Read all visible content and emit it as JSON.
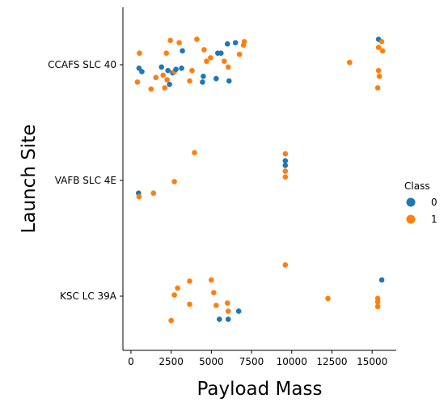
{
  "chart_data": {
    "type": "scatter",
    "xlabel": "Payload Mass",
    "ylabel": "Launch Site",
    "xlim": [
      -500,
      16500
    ],
    "xticks": [
      0,
      2500,
      5000,
      7500,
      10000,
      12500,
      15000
    ],
    "categories": [
      "CCAFS SLC 40",
      "VAFB SLC 4E",
      "KSC LC 39A"
    ],
    "legend": {
      "title": "Class",
      "position": "center-right",
      "entries": [
        {
          "label": "0",
          "color": "#1f77b4"
        },
        {
          "label": "1",
          "color": "#ff7f0e"
        }
      ]
    },
    "points": [
      {
        "site": "CCAFS SLC 40",
        "x": 400,
        "jitter": 0.15,
        "cls": 1
      },
      {
        "site": "CCAFS SLC 40",
        "x": 530,
        "jitter": -0.1,
        "cls": 1
      },
      {
        "site": "CCAFS SLC 40",
        "x": 500,
        "jitter": 0.03,
        "cls": 0
      },
      {
        "site": "CCAFS SLC 40",
        "x": 680,
        "jitter": 0.06,
        "cls": 0
      },
      {
        "site": "CCAFS SLC 40",
        "x": 1250,
        "jitter": 0.21,
        "cls": 1
      },
      {
        "site": "CCAFS SLC 40",
        "x": 1550,
        "jitter": 0.11,
        "cls": 1
      },
      {
        "site": "CCAFS SLC 40",
        "x": 1900,
        "jitter": 0.02,
        "cls": 0
      },
      {
        "site": "CCAFS SLC 40",
        "x": 2000,
        "jitter": 0.09,
        "cls": 1
      },
      {
        "site": "CCAFS SLC 40",
        "x": 2100,
        "jitter": 0.2,
        "cls": 1
      },
      {
        "site": "CCAFS SLC 40",
        "x": 2200,
        "jitter": -0.1,
        "cls": 1
      },
      {
        "site": "CCAFS SLC 40",
        "x": 2250,
        "jitter": 0.13,
        "cls": 1
      },
      {
        "site": "CCAFS SLC 40",
        "x": 2300,
        "jitter": 0.05,
        "cls": 0
      },
      {
        "site": "CCAFS SLC 40",
        "x": 2400,
        "jitter": 0.17,
        "cls": 0
      },
      {
        "site": "CCAFS SLC 40",
        "x": 2450,
        "jitter": -0.21,
        "cls": 1
      },
      {
        "site": "CCAFS SLC 40",
        "x": 2600,
        "jitter": 0.07,
        "cls": 0
      },
      {
        "site": "CCAFS SLC 40",
        "x": 2700,
        "jitter": 0.06,
        "cls": 1
      },
      {
        "site": "CCAFS SLC 40",
        "x": 2800,
        "jitter": 0.04,
        "cls": 0
      },
      {
        "site": "CCAFS SLC 40",
        "x": 3000,
        "jitter": -0.19,
        "cls": 1
      },
      {
        "site": "CCAFS SLC 40",
        "x": 3150,
        "jitter": 0.03,
        "cls": 0
      },
      {
        "site": "CCAFS SLC 40",
        "x": 3200,
        "jitter": -0.12,
        "cls": 0
      },
      {
        "site": "CCAFS SLC 40",
        "x": 3650,
        "jitter": 0.14,
        "cls": 1
      },
      {
        "site": "CCAFS SLC 40",
        "x": 3800,
        "jitter": 0.05,
        "cls": 1
      },
      {
        "site": "CCAFS SLC 40",
        "x": 4100,
        "jitter": -0.22,
        "cls": 1
      },
      {
        "site": "CCAFS SLC 40",
        "x": 4450,
        "jitter": 0.15,
        "cls": 0
      },
      {
        "site": "CCAFS SLC 40",
        "x": 4500,
        "jitter": 0.1,
        "cls": 0
      },
      {
        "site": "CCAFS SLC 40",
        "x": 4550,
        "jitter": -0.13,
        "cls": 1
      },
      {
        "site": "CCAFS SLC 40",
        "x": 4700,
        "jitter": -0.03,
        "cls": 1
      },
      {
        "site": "CCAFS SLC 40",
        "x": 4950,
        "jitter": -0.06,
        "cls": 1
      },
      {
        "site": "CCAFS SLC 40",
        "x": 5300,
        "jitter": 0.12,
        "cls": 0
      },
      {
        "site": "CCAFS SLC 40",
        "x": 5400,
        "jitter": -0.1,
        "cls": 0
      },
      {
        "site": "CCAFS SLC 40",
        "x": 5600,
        "jitter": -0.1,
        "cls": 0
      },
      {
        "site": "CCAFS SLC 40",
        "x": 5800,
        "jitter": -0.03,
        "cls": 1
      },
      {
        "site": "CCAFS SLC 40",
        "x": 6000,
        "jitter": -0.18,
        "cls": 0
      },
      {
        "site": "CCAFS SLC 40",
        "x": 6050,
        "jitter": 0.02,
        "cls": 1
      },
      {
        "site": "CCAFS SLC 40",
        "x": 6100,
        "jitter": 0.14,
        "cls": 0
      },
      {
        "site": "CCAFS SLC 40",
        "x": 6500,
        "jitter": -0.19,
        "cls": 0
      },
      {
        "site": "CCAFS SLC 40",
        "x": 6750,
        "jitter": -0.09,
        "cls": 1
      },
      {
        "site": "CCAFS SLC 40",
        "x": 7000,
        "jitter": -0.17,
        "cls": 1
      },
      {
        "site": "CCAFS SLC 40",
        "x": 7050,
        "jitter": -0.2,
        "cls": 1
      },
      {
        "site": "CCAFS SLC 40",
        "x": 13600,
        "jitter": -0.02,
        "cls": 1
      },
      {
        "site": "CCAFS SLC 40",
        "x": 15400,
        "jitter": -0.22,
        "cls": 0
      },
      {
        "site": "CCAFS SLC 40",
        "x": 15450,
        "jitter": 0.1,
        "cls": 1
      },
      {
        "site": "CCAFS SLC 40",
        "x": 15400,
        "jitter": 0.05,
        "cls": 1
      },
      {
        "site": "CCAFS SLC 40",
        "x": 15350,
        "jitter": 0.2,
        "cls": 1
      },
      {
        "site": "CCAFS SLC 40",
        "x": 15400,
        "jitter": -0.15,
        "cls": 1
      },
      {
        "site": "CCAFS SLC 40",
        "x": 15600,
        "jitter": -0.2,
        "cls": 1
      },
      {
        "site": "CCAFS SLC 40",
        "x": 15650,
        "jitter": -0.12,
        "cls": 1
      },
      {
        "site": "VAFB SLC 4E",
        "x": 470,
        "jitter": 0.11,
        "cls": 0
      },
      {
        "site": "VAFB SLC 4E",
        "x": 500,
        "jitter": 0.14,
        "cls": 1
      },
      {
        "site": "VAFB SLC 4E",
        "x": 1400,
        "jitter": 0.11,
        "cls": 1
      },
      {
        "site": "VAFB SLC 4E",
        "x": 2700,
        "jitter": 0.01,
        "cls": 1
      },
      {
        "site": "VAFB SLC 4E",
        "x": 3950,
        "jitter": -0.24,
        "cls": 1
      },
      {
        "site": "VAFB SLC 4E",
        "x": 9600,
        "jitter": -0.23,
        "cls": 1
      },
      {
        "site": "VAFB SLC 4E",
        "x": 9600,
        "jitter": -0.17,
        "cls": 0
      },
      {
        "site": "VAFB SLC 4E",
        "x": 9600,
        "jitter": -0.13,
        "cls": 0
      },
      {
        "site": "VAFB SLC 4E",
        "x": 9600,
        "jitter": -0.08,
        "cls": 1
      },
      {
        "site": "VAFB SLC 4E",
        "x": 9600,
        "jitter": -0.03,
        "cls": 1
      },
      {
        "site": "KSC LC 39A",
        "x": 2500,
        "jitter": 0.21,
        "cls": 1
      },
      {
        "site": "KSC LC 39A",
        "x": 2700,
        "jitter": -0.01,
        "cls": 1
      },
      {
        "site": "KSC LC 39A",
        "x": 2900,
        "jitter": -0.07,
        "cls": 1
      },
      {
        "site": "KSC LC 39A",
        "x": 3650,
        "jitter": -0.13,
        "cls": 1
      },
      {
        "site": "KSC LC 39A",
        "x": 3650,
        "jitter": 0.07,
        "cls": 1
      },
      {
        "site": "KSC LC 39A",
        "x": 5000,
        "jitter": -0.14,
        "cls": 1
      },
      {
        "site": "KSC LC 39A",
        "x": 5150,
        "jitter": -0.03,
        "cls": 1
      },
      {
        "site": "KSC LC 39A",
        "x": 5300,
        "jitter": 0.08,
        "cls": 1
      },
      {
        "site": "KSC LC 39A",
        "x": 5500,
        "jitter": 0.2,
        "cls": 0
      },
      {
        "site": "KSC LC 39A",
        "x": 6000,
        "jitter": 0.06,
        "cls": 1
      },
      {
        "site": "KSC LC 39A",
        "x": 6050,
        "jitter": 0.2,
        "cls": 0
      },
      {
        "site": "KSC LC 39A",
        "x": 6050,
        "jitter": 0.13,
        "cls": 1
      },
      {
        "site": "KSC LC 39A",
        "x": 6700,
        "jitter": 0.13,
        "cls": 0
      },
      {
        "site": "KSC LC 39A",
        "x": 9600,
        "jitter": -0.27,
        "cls": 1
      },
      {
        "site": "KSC LC 39A",
        "x": 12250,
        "jitter": 0.02,
        "cls": 1
      },
      {
        "site": "KSC LC 39A",
        "x": 15350,
        "jitter": 0.02,
        "cls": 1
      },
      {
        "site": "KSC LC 39A",
        "x": 15350,
        "jitter": 0.05,
        "cls": 1
      },
      {
        "site": "KSC LC 39A",
        "x": 15350,
        "jitter": 0.09,
        "cls": 1
      },
      {
        "site": "KSC LC 39A",
        "x": 15600,
        "jitter": -0.14,
        "cls": 0
      }
    ]
  }
}
